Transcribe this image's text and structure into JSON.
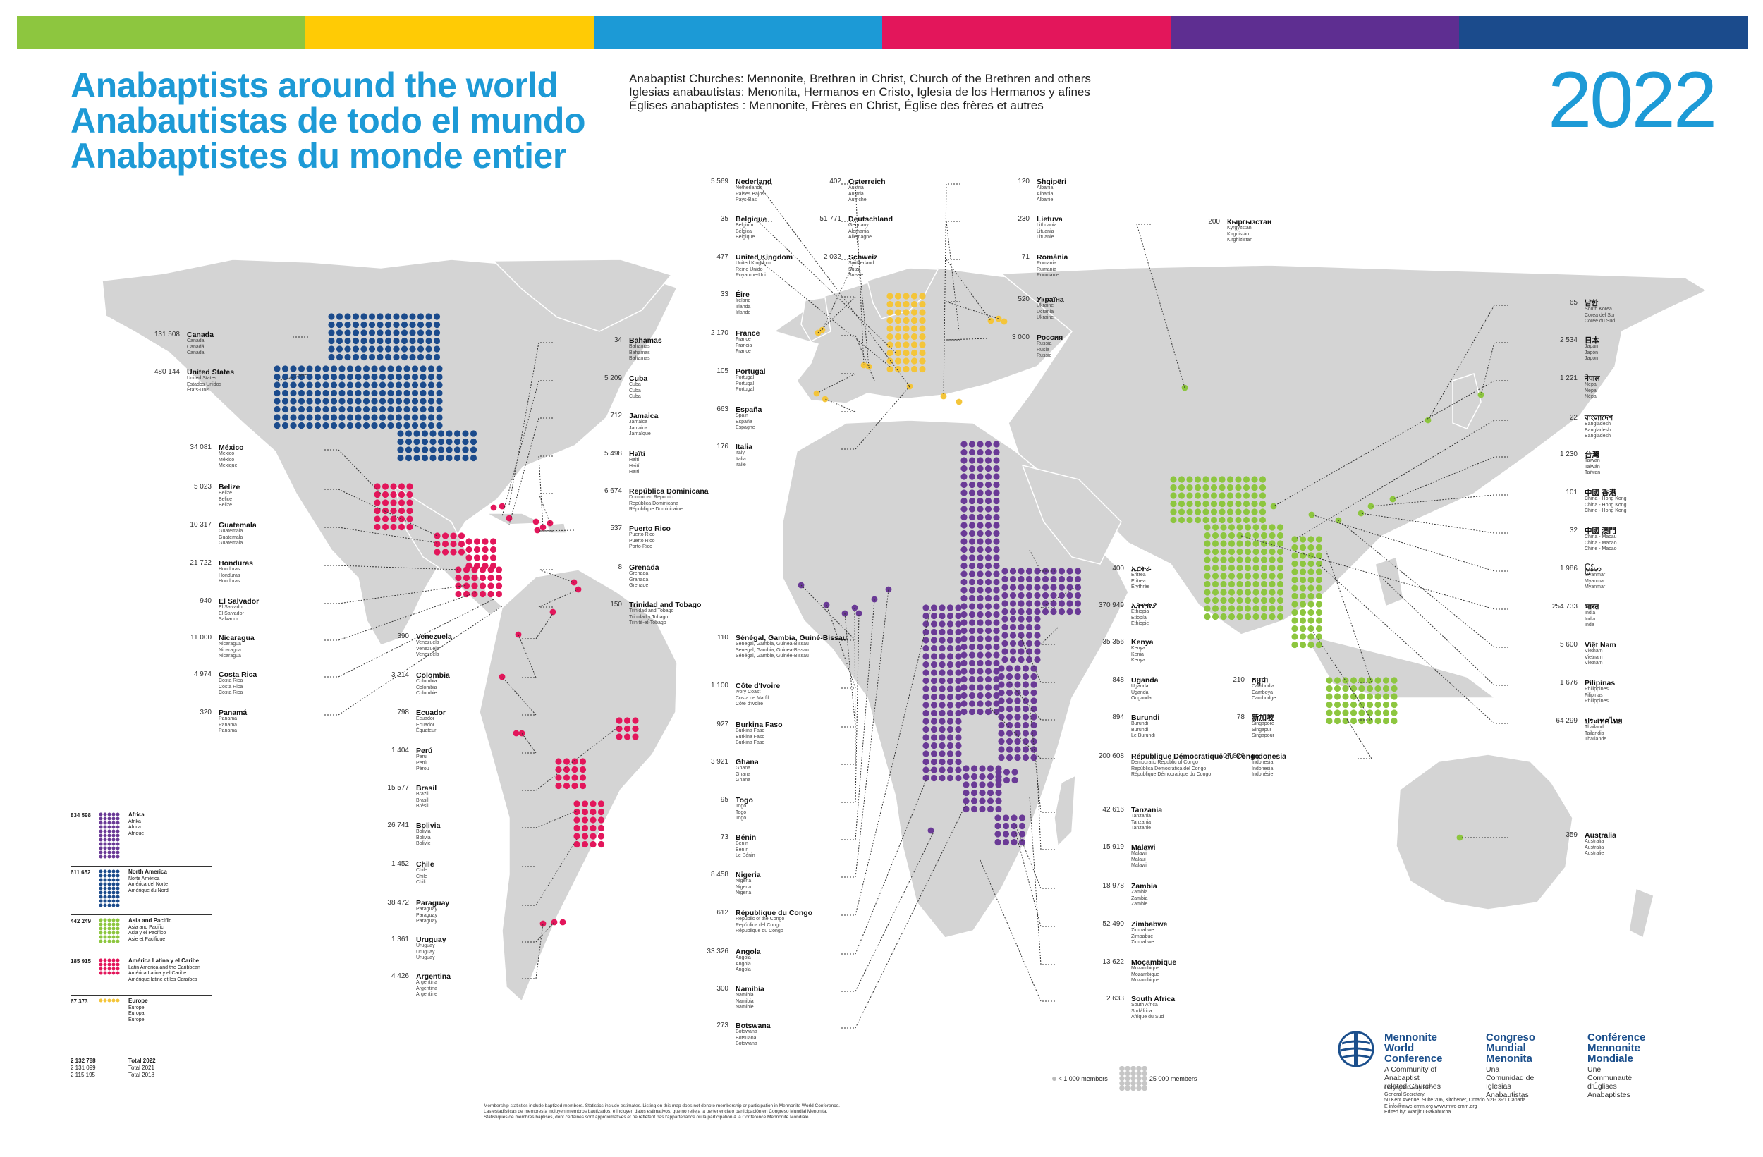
{
  "stripes": [
    "#8dc63f",
    "#ffcb05",
    "#1c9ad6",
    "#e3165b",
    "#5e2e91",
    "#1b4b8c"
  ],
  "titles": [
    "Anabaptists around the world",
    "Anabautistas de todo el mundo",
    "Anabaptistes du monde entier"
  ],
  "subtitle": [
    "Anabaptist Churches: Mennonite, Brethren in Christ, Church of the Brethren and others",
    "Iglesias anabautistas: Menonita, Hermanos en Cristo, Iglesia de los Hermanos y afines",
    "Églises anabaptistes : Mennonite, Frères en Christ, Église des frères et autres"
  ],
  "year": "2022",
  "colors": {
    "africa": "#6a3a96",
    "north_america": "#1b4b8c",
    "asia": "#8dc63f",
    "latin_america": "#e3165b",
    "europe": "#f4c53a",
    "land": "#d4d4d4",
    "title": "#1d9ad6"
  },
  "countries": [
    {
      "id": "canada",
      "name": "Canada",
      "count": "131 508",
      "trans": [
        "Canada",
        "Canadá",
        "Canada"
      ]
    },
    {
      "id": "usa",
      "name": "United States",
      "count": "480 144",
      "trans": [
        "United States",
        "Estados Unidos",
        "États-Unis"
      ]
    },
    {
      "id": "mexico",
      "name": "México",
      "count": "34 081",
      "trans": [
        "Mexico",
        "México",
        "Mexique"
      ]
    },
    {
      "id": "belize",
      "name": "Belize",
      "count": "5 023",
      "trans": [
        "Belize",
        "Belice",
        "Belize"
      ]
    },
    {
      "id": "guatemala",
      "name": "Guatemala",
      "count": "10 317",
      "trans": [
        "Guatemala",
        "Guatemala",
        "Guatemala"
      ]
    },
    {
      "id": "honduras",
      "name": "Honduras",
      "count": "21 722",
      "trans": [
        "Honduras",
        "Honduras",
        "Honduras"
      ]
    },
    {
      "id": "elsalvador",
      "name": "El Salvador",
      "count": "940",
      "trans": [
        "El Salvador",
        "El Salvador",
        "Salvador"
      ]
    },
    {
      "id": "nicaragua",
      "name": "Nicaragua",
      "count": "11 000",
      "trans": [
        "Nicaragua",
        "Nicaragua",
        "Nicaragua"
      ]
    },
    {
      "id": "costarica",
      "name": "Costa Rica",
      "count": "4 974",
      "trans": [
        "Costa Rica",
        "Costa Rica",
        "Costa Rica"
      ]
    },
    {
      "id": "panama",
      "name": "Panamá",
      "count": "320",
      "trans": [
        "Panama",
        "Panamá",
        "Panama"
      ]
    },
    {
      "id": "bahamas",
      "name": "Bahamas",
      "count": "34",
      "trans": [
        "Bahamas",
        "Bahamas",
        "Bahamas"
      ]
    },
    {
      "id": "cuba",
      "name": "Cuba",
      "count": "5 209",
      "trans": [
        "Cuba",
        "Cuba",
        "Cuba"
      ]
    },
    {
      "id": "jamaica",
      "name": "Jamaica",
      "count": "712",
      "trans": [
        "Jamaica",
        "Jamaica",
        "Jamaïque"
      ]
    },
    {
      "id": "haiti",
      "name": "Haïti",
      "count": "5 498",
      "trans": [
        "Haiti",
        "Haití",
        "Haïti"
      ]
    },
    {
      "id": "dominican",
      "name": "República Dominicana",
      "count": "6 674",
      "trans": [
        "Dominican Republic",
        "República Dominicana",
        "République Dominicaine"
      ]
    },
    {
      "id": "puertorico",
      "name": "Puerto Rico",
      "count": "537",
      "trans": [
        "Puerto Rico",
        "Puerto Rico",
        "Porto-Rico"
      ]
    },
    {
      "id": "grenada",
      "name": "Grenada",
      "count": "8",
      "trans": [
        "Grenada",
        "Granada",
        "Grenade"
      ]
    },
    {
      "id": "trinidad",
      "name": "Trinidad and Tobago",
      "count": "150",
      "trans": [
        "Trinidad and Tobago",
        "Trinidad y Tobago",
        "Trinité-et-Tobago"
      ]
    },
    {
      "id": "venezuela",
      "name": "Venezuela",
      "count": "390",
      "trans": [
        "Venezuela",
        "Venezuela",
        "Venezuela"
      ]
    },
    {
      "id": "colombia",
      "name": "Colombia",
      "count": "3 214",
      "trans": [
        "Colombia",
        "Colombia",
        "Colombie"
      ]
    },
    {
      "id": "ecuador",
      "name": "Ecuador",
      "count": "798",
      "trans": [
        "Ecuador",
        "Ecuador",
        "Équateur"
      ]
    },
    {
      "id": "peru",
      "name": "Perú",
      "count": "1 404",
      "trans": [
        "Peru",
        "Perú",
        "Pérou"
      ]
    },
    {
      "id": "brasil",
      "name": "Brasil",
      "count": "15 577",
      "trans": [
        "Brazil",
        "Brasil",
        "Brésil"
      ]
    },
    {
      "id": "bolivia",
      "name": "Bolivia",
      "count": "26 741",
      "trans": [
        "Bolivia",
        "Bolivia",
        "Bolivie"
      ]
    },
    {
      "id": "chile",
      "name": "Chile",
      "count": "1 452",
      "trans": [
        "Chile",
        "Chile",
        "Chili"
      ]
    },
    {
      "id": "paraguay",
      "name": "Paraguay",
      "count": "38 472",
      "trans": [
        "Paraguay",
        "Paraguay",
        "Paraguay"
      ]
    },
    {
      "id": "uruguay",
      "name": "Uruguay",
      "count": "1 361",
      "trans": [
        "Uruguay",
        "Uruguay",
        "Uruguay"
      ]
    },
    {
      "id": "argentina",
      "name": "Argentina",
      "count": "4 426",
      "trans": [
        "Argentina",
        "Argentina",
        "Argentine"
      ]
    },
    {
      "id": "nederland",
      "name": "Nederland",
      "count": "5 569",
      "trans": [
        "Netherlands",
        "Países Bajos",
        "Pays-Bas"
      ]
    },
    {
      "id": "belgique",
      "name": "Belgique",
      "count": "35",
      "trans": [
        "Belgium",
        "Bélgica",
        "Belgique"
      ]
    },
    {
      "id": "uk",
      "name": "United Kingdom",
      "count": "477",
      "trans": [
        "United Kingdom",
        "Reino Unido",
        "Royaume-Uni"
      ]
    },
    {
      "id": "eire",
      "name": "Éire",
      "count": "33",
      "trans": [
        "Ireland",
        "Irlanda",
        "Irlande"
      ]
    },
    {
      "id": "france",
      "name": "France",
      "count": "2 170",
      "trans": [
        "France",
        "Francia",
        "France"
      ]
    },
    {
      "id": "portugal",
      "name": "Portugal",
      "count": "105",
      "trans": [
        "Portugal",
        "Portugal",
        "Portugal"
      ]
    },
    {
      "id": "espana",
      "name": "España",
      "count": "663",
      "trans": [
        "Spain",
        "España",
        "Espagne"
      ]
    },
    {
      "id": "italia",
      "name": "Italia",
      "count": "176",
      "trans": [
        "Italy",
        "Italia",
        "Italie"
      ]
    },
    {
      "id": "osterreich",
      "name": "Österreich",
      "count": "402",
      "trans": [
        "Austria",
        "Austria",
        "Autriche"
      ]
    },
    {
      "id": "deutschland",
      "name": "Deutschland",
      "count": "51 771",
      "trans": [
        "Germany",
        "Alemania",
        "Allemagne"
      ]
    },
    {
      "id": "schweiz",
      "name": "Schweiz",
      "count": "2 032",
      "trans": [
        "Switzerland",
        "Suiza",
        "Suisse"
      ]
    },
    {
      "id": "shqiperi",
      "name": "Shqipëri",
      "count": "120",
      "trans": [
        "Albania",
        "Albania",
        "Albanie"
      ]
    },
    {
      "id": "lietuva",
      "name": "Lietuva",
      "count": "230",
      "trans": [
        "Lithuania",
        "Lituania",
        "Lituanie"
      ]
    },
    {
      "id": "romania",
      "name": "România",
      "count": "71",
      "trans": [
        "Romania",
        "Rumania",
        "Roumanie"
      ]
    },
    {
      "id": "ukraina",
      "name": "Україна",
      "count": "520",
      "trans": [
        "Ukraine",
        "Ucrania",
        "Ukraine"
      ]
    },
    {
      "id": "rossiya",
      "name": "Россия",
      "count": "3 000",
      "trans": [
        "Russia",
        "Rusia",
        "Russie"
      ]
    },
    {
      "id": "kyrgyzstan",
      "name": "Кыргызстан",
      "count": "200",
      "trans": [
        "Kyrgyzstan",
        "Kirguistán",
        "Kirghizistan"
      ]
    },
    {
      "id": "senegal",
      "name": "Sénégal, Gambia, Guiné-Bissau",
      "count": "110",
      "trans": [
        "Senegal, Gambia, Guinea-Bissau",
        "Senegal, Gambia, Guinea-Bissau",
        "Sénégal, Gambie, Guinée-Bissau"
      ]
    },
    {
      "id": "cotedivoire",
      "name": "Côte d'Ivoire",
      "count": "1 100",
      "trans": [
        "Ivory Coast",
        "Costa de Marfil",
        "Côte d'Ivoire"
      ]
    },
    {
      "id": "burkina",
      "name": "Burkina Faso",
      "count": "927",
      "trans": [
        "Burkina Faso",
        "Burkina Faso",
        "Burkina Faso"
      ]
    },
    {
      "id": "ghana",
      "name": "Ghana",
      "count": "3 921",
      "trans": [
        "Ghana",
        "Ghana",
        "Ghana"
      ]
    },
    {
      "id": "togo",
      "name": "Togo",
      "count": "95",
      "trans": [
        "Togo",
        "Togo",
        "Togo"
      ]
    },
    {
      "id": "benin",
      "name": "Bénin",
      "count": "73",
      "trans": [
        "Benin",
        "Benín",
        "Le Bénin"
      ]
    },
    {
      "id": "nigeria",
      "name": "Nigeria",
      "count": "8 458",
      "trans": [
        "Nigeria",
        "Nigeria",
        "Nigeria"
      ]
    },
    {
      "id": "rcongo",
      "name": "République du Congo",
      "count": "612",
      "trans": [
        "Republic of the Congo",
        "República del Congo",
        "République du Congo"
      ]
    },
    {
      "id": "angola",
      "name": "Angola",
      "count": "33 326",
      "trans": [
        "Angola",
        "Angola",
        "Angola"
      ]
    },
    {
      "id": "namibia",
      "name": "Namibia",
      "count": "300",
      "trans": [
        "Namibia",
        "Namibia",
        "Namibie"
      ]
    },
    {
      "id": "botswana",
      "name": "Botswana",
      "count": "273",
      "trans": [
        "Botswana",
        "Botsuana",
        "Botswana"
      ]
    },
    {
      "id": "eritrea",
      "name": "ኤርትራ",
      "count": "400",
      "trans": [
        "Eritrea",
        "Eritrea",
        "Érythrée"
      ]
    },
    {
      "id": "ethiopia",
      "name": "ኢትዮጵያ",
      "count": "370 949",
      "trans": [
        "Ethiopia",
        "Etiopía",
        "Éthiopie"
      ]
    },
    {
      "id": "kenya",
      "name": "Kenya",
      "count": "35 356",
      "trans": [
        "Kenya",
        "Kenia",
        "Kenya"
      ]
    },
    {
      "id": "uganda",
      "name": "Uganda",
      "count": "848",
      "trans": [
        "Uganda",
        "Uganda",
        "Ouganda"
      ]
    },
    {
      "id": "burundi",
      "name": "Burundi",
      "count": "894",
      "trans": [
        "Burundi",
        "Burundi",
        "Le Burundi"
      ]
    },
    {
      "id": "rdcongo",
      "name": "République Démocratique du Congo",
      "count": "200 608",
      "trans": [
        "Democratic Republic of Congo",
        "República Democrática del Congo",
        "République Démocratique du Congo"
      ]
    },
    {
      "id": "tanzania",
      "name": "Tanzania",
      "count": "42 616",
      "trans": [
        "Tanzania",
        "Tanzania",
        "Tanzanie"
      ]
    },
    {
      "id": "malawi",
      "name": "Malawi",
      "count": "15 919",
      "trans": [
        "Malawi",
        "Malaui",
        "Malawi"
      ]
    },
    {
      "id": "zambia",
      "name": "Zambia",
      "count": "18 978",
      "trans": [
        "Zambia",
        "Zambia",
        "Zambie"
      ]
    },
    {
      "id": "zimbabwe",
      "name": "Zimbabwe",
      "count": "52 490",
      "trans": [
        "Zimbabwe",
        "Zimbabue",
        "Zimbabwe"
      ]
    },
    {
      "id": "mocambique",
      "name": "Moçambique",
      "count": "13 622",
      "trans": [
        "Mozambique",
        "Mozambique",
        "Mozambique"
      ]
    },
    {
      "id": "southafrica",
      "name": "South Africa",
      "count": "2 633",
      "trans": [
        "South Africa",
        "Sudáfrica",
        "Afrique du Sud"
      ]
    },
    {
      "id": "korea",
      "name": "남한",
      "count": "65",
      "trans": [
        "South Korea",
        "Corea del Sur",
        "Corée du Sud"
      ]
    },
    {
      "id": "japan",
      "name": "日本",
      "count": "2 534",
      "trans": [
        "Japan",
        "Japón",
        "Japon"
      ]
    },
    {
      "id": "nepal",
      "name": "नेपाल",
      "count": "1 221",
      "trans": [
        "Nepal",
        "Nepal",
        "Népal"
      ]
    },
    {
      "id": "bangladesh",
      "name": "বাংলাদেশ",
      "count": "22",
      "trans": [
        "Bangladesh",
        "Bangladesh",
        "Bangladesh"
      ]
    },
    {
      "id": "taiwan",
      "name": "台灣",
      "count": "1 230",
      "trans": [
        "Taiwan",
        "Taiwán",
        "Taïwan"
      ]
    },
    {
      "id": "hongkong",
      "name": "中國 香港",
      "count": "101",
      "trans": [
        "China - Hong Kong",
        "China - Hong Kong",
        "Chine - Hong Kong"
      ]
    },
    {
      "id": "macau",
      "name": "中國 澳門",
      "count": "32",
      "trans": [
        "China - Macau",
        "China - Macao",
        "Chine - Macao"
      ]
    },
    {
      "id": "myanmar",
      "name": "မြန်မာ",
      "count": "1 986",
      "trans": [
        "Myanmar",
        "Myanmar",
        "Myanmar"
      ]
    },
    {
      "id": "india",
      "name": "भारत",
      "count": "254 733",
      "trans": [
        "India",
        "India",
        "Inde"
      ]
    },
    {
      "id": "vietnam",
      "name": "Việt Nam",
      "count": "5 600",
      "trans": [
        "Vietnam",
        "Vietnam",
        "Vietnam"
      ]
    },
    {
      "id": "pilipinas",
      "name": "Pilipinas",
      "count": "1 676",
      "trans": [
        "Philippines",
        "Filipinas",
        "Philippines"
      ]
    },
    {
      "id": "thailand",
      "name": "ประเทศไทย",
      "count": "64 299",
      "trans": [
        "Thailand",
        "Tailandia",
        "Thaïlande"
      ]
    },
    {
      "id": "cambodia",
      "name": "កម្ពុជា",
      "count": "210",
      "trans": [
        "Cambodia",
        "Camboya",
        "Cambodge"
      ]
    },
    {
      "id": "singapore",
      "name": "新加坡",
      "count": "78",
      "trans": [
        "Singapore",
        "Singapur",
        "Singapour"
      ]
    },
    {
      "id": "indonesia",
      "name": "Indonesia",
      "count": "107 876",
      "trans": [
        "Indonesia",
        "Indonesia",
        "Indonésie"
      ]
    },
    {
      "id": "australia",
      "name": "Australia",
      "count": "359",
      "trans": [
        "Australia",
        "Australia",
        "Australie"
      ]
    }
  ],
  "legend": [
    {
      "id": "africa",
      "count": "834 598",
      "labels": [
        "Africa",
        "Afrika",
        "África",
        "Afrique"
      ]
    },
    {
      "id": "north_america",
      "count": "611 652",
      "labels": [
        "North America",
        "Norte América",
        "América del Norte",
        "Amérique du Nord"
      ]
    },
    {
      "id": "asia",
      "count": "442 249",
      "labels": [
        "Asia and Pacific",
        "Asia and Pacific",
        "Asia y el Pacífico",
        "Asie et Pacifique"
      ]
    },
    {
      "id": "latin_america",
      "count": "185 915",
      "labels": [
        "América Latina y el Caribe",
        "Latin America and the Caribbean",
        "América Latina y el Caribe",
        "Amérique latine et les Caraïbes"
      ]
    },
    {
      "id": "europe",
      "count": "67 373",
      "labels": [
        "Europe",
        "Europe",
        "Europa",
        "Europe"
      ]
    }
  ],
  "totals": [
    {
      "count": "2 132 788",
      "label": "Total 2022"
    },
    {
      "count": "2 131 099",
      "label": "Total 2021"
    },
    {
      "count": "2 115 195",
      "label": "Total 2018"
    }
  ],
  "scale": {
    "small": "< 1 000 members",
    "large": "25 000 members"
  },
  "footnote": [
    "Membership statistics include baptized members. Statistics include estimates. Listing on this map does not denote membership or participation in Mennonite World Conference.",
    "Las estadísticas de membresía incluyen miembros bautizados, e incluyen datos estimativos, que no refleja la pertenencia o participación en Congreso Mundial Menonita.",
    "Statistiques de membres baptisés, dont certaines sont approximatives et ne reflètent pas l'appartenance ou la participation à la Conférence Mennonite Mondiale."
  ],
  "mwc": {
    "en": [
      "Mennonite",
      "World Conference"
    ],
    "en_sub": [
      "A Community of Anabaptist",
      "related Churches"
    ],
    "es": [
      "Congreso",
      "Mundial Menonita"
    ],
    "es_sub": [
      "Una Comunidad de",
      "Iglesias Anabautistas"
    ],
    "fr": [
      "Conférence",
      "Mennonite Mondiale"
    ],
    "fr_sub": [
      "Une Communauté",
      "d'Églises Anabaptistes"
    ],
    "contact": [
      "Copyright © May 2022",
      "General Secretary,",
      "50 Kent Avenue, Suite 206, Kitchener, Ontario N2G 3R1 Canada",
      "E info@mwc-cmm.org       www.mwc-cmm.org",
      "Edited by: Wanjiru Gakabucha"
    ]
  }
}
